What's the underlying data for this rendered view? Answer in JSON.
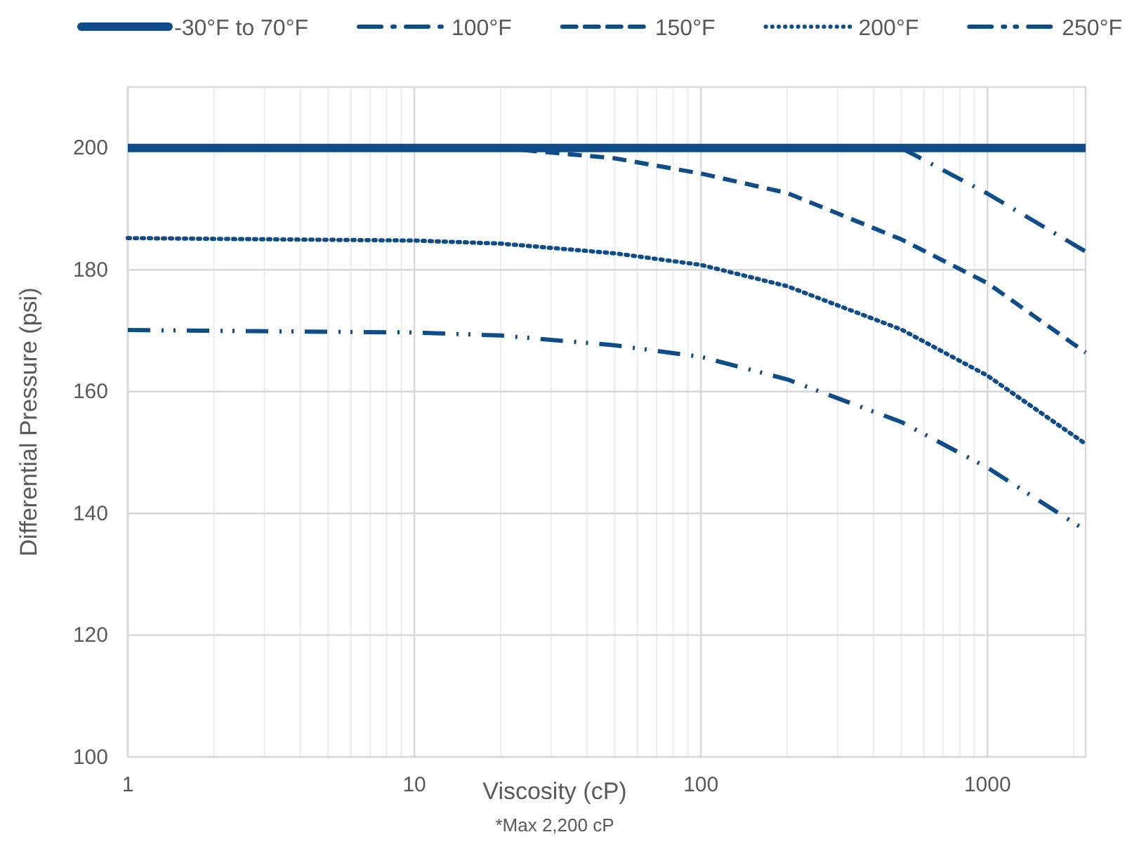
{
  "chart_data": {
    "type": "line",
    "xlabel": "Viscosity (cP)",
    "ylabel": "Differential Pressure (psi)",
    "annotations": [
      "*Max 2,200 cP"
    ],
    "log": "x",
    "xlim": [
      1,
      2200
    ],
    "xticks": [
      1,
      10,
      100,
      1000
    ],
    "ylim": [
      100,
      210
    ],
    "yticks": [
      100,
      120,
      140,
      160,
      180,
      200
    ],
    "grid": true,
    "legend": "top",
    "marker": "none",
    "series": [
      {
        "name": "-30°F to 70°F",
        "color": "#0f4c8a",
        "line_style": "solid",
        "x": [
          1,
          2200
        ],
        "values": [
          200,
          200
        ]
      },
      {
        "name": "100°F",
        "color": "#0f4c8a",
        "line_style": "dashdot",
        "x": [
          500,
          1000,
          2200
        ],
        "values": [
          200,
          192.5,
          183
        ]
      },
      {
        "name": "150°F",
        "color": "#0f4c8a",
        "line_style": "dashed",
        "x": [
          20,
          50,
          100,
          200,
          500,
          1000,
          2200
        ],
        "values": [
          200,
          198.3,
          195.8,
          192.6,
          185,
          177.8,
          166.4
        ]
      },
      {
        "name": "200°F",
        "color": "#0f4c8a",
        "line_style": "dotted",
        "x": [
          1,
          10,
          20,
          50,
          100,
          200,
          500,
          1000,
          2200
        ],
        "values": [
          185.2,
          184.8,
          184.3,
          182.7,
          180.8,
          177.3,
          170.2,
          162.6,
          151.4
        ]
      },
      {
        "name": "250°F",
        "color": "#0f4c8a",
        "line_style": "dashdotdot",
        "x": [
          1,
          10,
          20,
          50,
          100,
          200,
          500,
          1000,
          2200
        ],
        "values": [
          170.1,
          169.7,
          169.2,
          167.6,
          165.7,
          162,
          155,
          147.5,
          137.2
        ]
      }
    ]
  }
}
